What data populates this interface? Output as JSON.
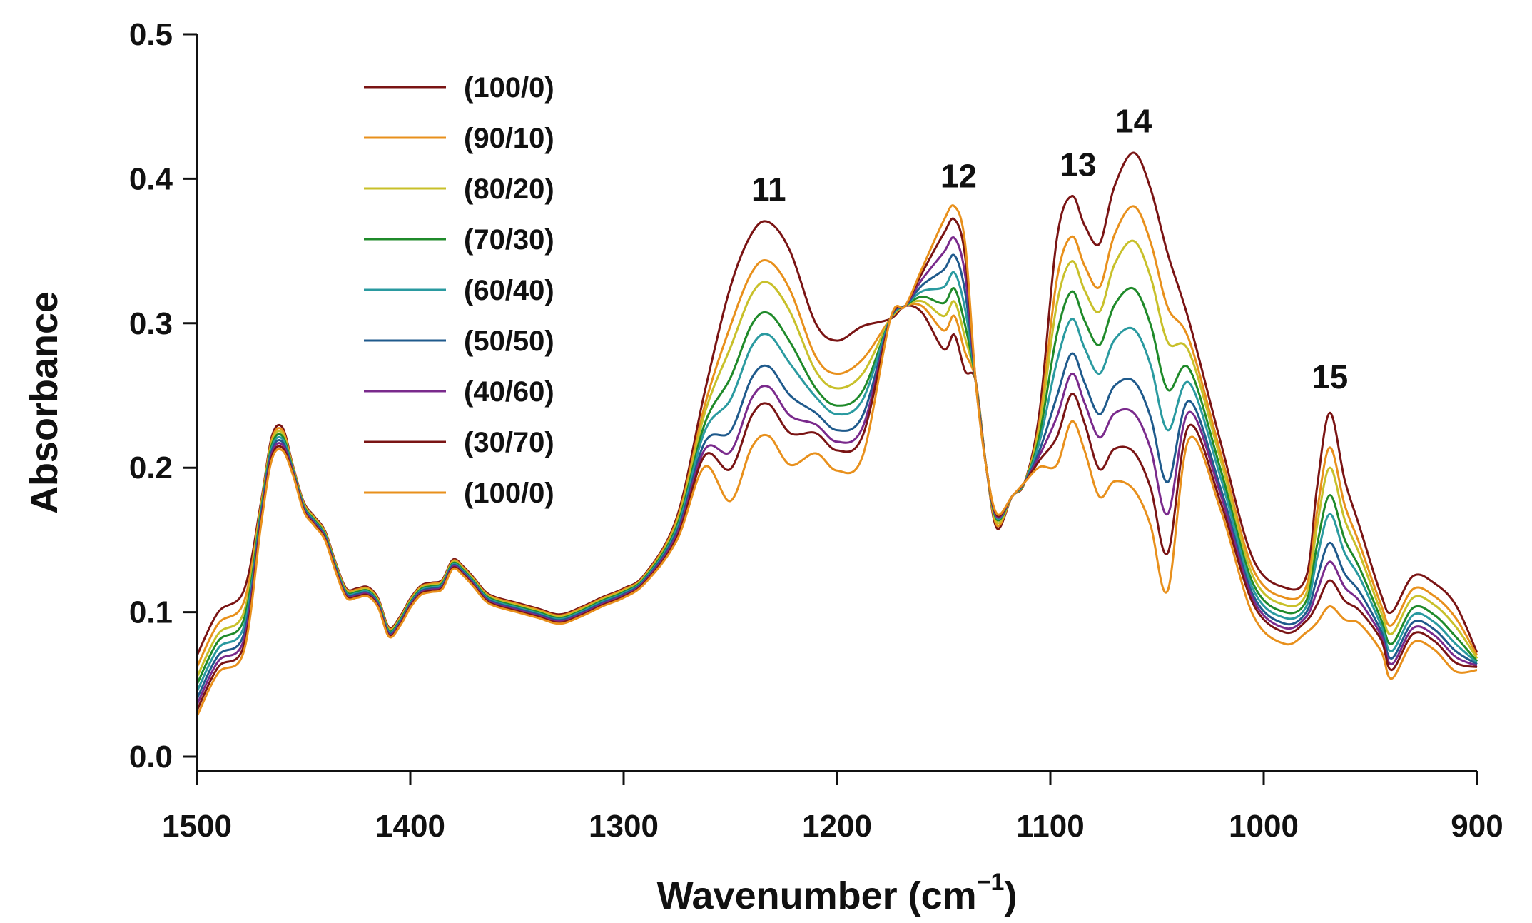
{
  "chart_data": {
    "type": "line",
    "title": "",
    "xlabel": "Wavenumber (cm",
    "xlabel_sup": "−1",
    "xlabel_close": ")",
    "ylabel": "Absorbance",
    "xlim": [
      1500,
      900
    ],
    "ylim": [
      0.0,
      0.5
    ],
    "x_ticks": [
      1500,
      1400,
      1300,
      1200,
      1100,
      1000,
      900
    ],
    "x_tick_labels": [
      "1500",
      "1400",
      "1300",
      "1200",
      "1100",
      "1000",
      "900"
    ],
    "y_ticks": [
      0.0,
      0.1,
      0.2,
      0.3,
      0.4,
      0.5
    ],
    "y_tick_labels": [
      "0.0",
      "0.1",
      "0.2",
      "0.3",
      "0.4",
      "0.5"
    ],
    "grid": false,
    "legend_position": "top-left",
    "annotations": [
      {
        "text": "11",
        "x": 1232,
        "y": 0.385
      },
      {
        "text": "12",
        "x": 1143,
        "y": 0.394
      },
      {
        "text": "13",
        "x": 1087,
        "y": 0.402
      },
      {
        "text": "14",
        "x": 1061,
        "y": 0.432
      },
      {
        "text": "15",
        "x": 969,
        "y": 0.255
      }
    ],
    "common_curve": {
      "description": "features shared by all series (wavenumber, absorbance)",
      "x": [
        1470,
        1465,
        1460,
        1455,
        1450,
        1445,
        1440,
        1435,
        1430,
        1425,
        1420,
        1415,
        1410,
        1405,
        1400,
        1395,
        1390,
        1385,
        1380,
        1375,
        1370,
        1365,
        1360,
        1350,
        1340,
        1330,
        1320,
        1310,
        1300,
        1290
      ],
      "y": [
        0.16,
        0.205,
        0.212,
        0.195,
        0.17,
        0.16,
        0.15,
        0.128,
        0.11,
        0.11,
        0.111,
        0.103,
        0.083,
        0.09,
        0.103,
        0.112,
        0.114,
        0.116,
        0.13,
        0.125,
        0.117,
        0.108,
        0.104,
        0.1,
        0.096,
        0.092,
        0.097,
        0.104,
        0.11,
        0.12
      ]
    },
    "series": [
      {
        "name": "(100/0)",
        "color": "#7a1414",
        "a0": 0.07,
        "valley1200": 0.288,
        "peaks": {
          "p11": 0.37,
          "p12": 0.292,
          "p13": 0.388,
          "p14": 0.418,
          "p15": 0.238
        },
        "lows": {
          "v13_14": 0.355,
          "v1125": 0.158,
          "v990": 0.117
        },
        "tail": {
          "y930": 0.125,
          "y900": 0.072
        }
      },
      {
        "name": "(90/10)",
        "color": "#e8901c",
        "a0": 0.062,
        "valley1200": 0.265,
        "peaks": {
          "p11": 0.343,
          "p12": 0.305,
          "p13": 0.36,
          "p14": 0.381,
          "p15": 0.214
        },
        "lows": {
          "v13_14": 0.325,
          "v1125": 0.16,
          "v990": 0.11
        },
        "tail": {
          "y930": 0.116,
          "y900": 0.07
        }
      },
      {
        "name": "(80/20)",
        "color": "#c8c02a",
        "a0": 0.055,
        "valley1200": 0.255,
        "peaks": {
          "p11": 0.328,
          "p12": 0.315,
          "p13": 0.343,
          "p14": 0.357,
          "p15": 0.2
        },
        "lows": {
          "v13_14": 0.308,
          "v1125": 0.162,
          "v990": 0.105
        },
        "tail": {
          "y930": 0.11,
          "y900": 0.068
        }
      },
      {
        "name": "(70/30)",
        "color": "#1f8a2a",
        "a0": 0.05,
        "valley1200": 0.243,
        "peaks": {
          "p11": 0.307,
          "p12": 0.324,
          "p13": 0.322,
          "p14": 0.324,
          "p15": 0.181
        },
        "lows": {
          "v13_14": 0.285,
          "v1125": 0.164,
          "v990": 0.1
        },
        "tail": {
          "y930": 0.103,
          "y900": 0.066
        }
      },
      {
        "name": "(60/40)",
        "color": "#2a9aa0",
        "a0": 0.045,
        "valley1200": 0.237,
        "peaks": {
          "p11": 0.292,
          "p12": 0.335,
          "p13": 0.303,
          "p14": 0.296,
          "p15": 0.168
        },
        "lows": {
          "v13_14": 0.265,
          "v1125": 0.165,
          "v990": 0.096
        },
        "tail": {
          "y930": 0.098,
          "y900": 0.065
        }
      },
      {
        "name": "(50/50)",
        "color": "#1f5a8c",
        "a0": 0.04,
        "valley1200": 0.226,
        "peaks": {
          "p11": 0.27,
          "p12": 0.347,
          "p13": 0.279,
          "p14": 0.26,
          "p15": 0.148
        },
        "lows": {
          "v13_14": 0.237,
          "v1125": 0.166,
          "v990": 0.092
        },
        "tail": {
          "y930": 0.093,
          "y900": 0.064
        }
      },
      {
        "name": "(40/60)",
        "color": "#7a2a8c",
        "a0": 0.036,
        "valley1200": 0.218,
        "peaks": {
          "p11": 0.256,
          "p12": 0.359,
          "p13": 0.265,
          "p14": 0.238,
          "p15": 0.135
        },
        "lows": {
          "v13_14": 0.221,
          "v1125": 0.166,
          "v990": 0.089
        },
        "tail": {
          "y930": 0.089,
          "y900": 0.063
        }
      },
      {
        "name": "(30/70)",
        "color": "#7a1414",
        "a0": 0.032,
        "valley1200": 0.212,
        "peaks": {
          "p11": 0.244,
          "p12": 0.372,
          "p13": 0.251,
          "p14": 0.211,
          "p15": 0.122
        },
        "lows": {
          "v13_14": 0.199,
          "v1125": 0.167,
          "v990": 0.086
        },
        "tail": {
          "y930": 0.085,
          "y900": 0.062
        }
      },
      {
        "name": "(100/0)",
        "color": "#e8901c",
        "a0": 0.028,
        "valley1200": 0.198,
        "peaks": {
          "p11": 0.222,
          "p12": 0.381,
          "p13": 0.232,
          "p14": 0.185,
          "p15": 0.104
        },
        "lows": {
          "v13_14": 0.18,
          "v1125": 0.168,
          "v990": 0.078
        },
        "tail": {
          "y930": 0.079,
          "y900": 0.06
        }
      }
    ]
  }
}
